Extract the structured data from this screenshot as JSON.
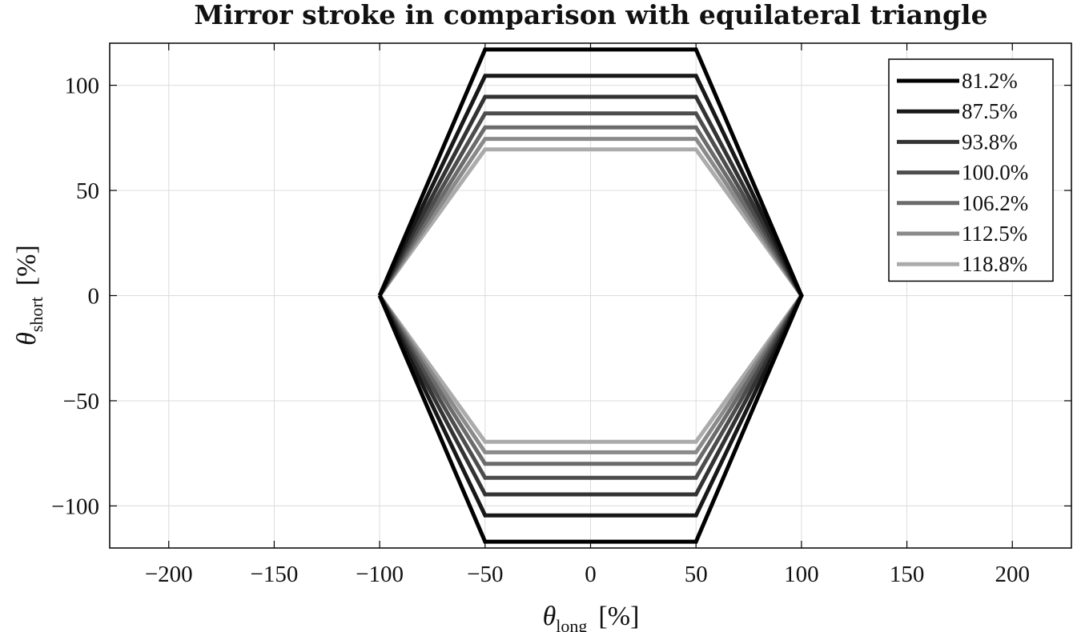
{
  "chart_data": {
    "type": "line",
    "title": "Mirror stroke in comparison with equilateral triangle",
    "xlabel": {
      "symbol": "θ",
      "subscript": "long",
      "unit": "[%]"
    },
    "ylabel": {
      "symbol": "θ",
      "subscript": "short",
      "unit": "[%]"
    },
    "xlim": [
      -228,
      228
    ],
    "ylim": [
      -120,
      120
    ],
    "xticks": [
      -200,
      -150,
      -100,
      -50,
      0,
      50,
      100,
      150,
      200
    ],
    "yticks": [
      -100,
      -50,
      0,
      50,
      100
    ],
    "xtick_labels": [
      "−200",
      "−150",
      "−100",
      "−50",
      "0",
      "50",
      "100",
      "150",
      "200"
    ],
    "ytick_labels": [
      "−100",
      "−50",
      "0",
      "50",
      "100"
    ],
    "grid": true,
    "legend_position": "top-right",
    "series": [
      {
        "name": "81.2%",
        "color": "#000000",
        "x": [
          -100,
          -50,
          50,
          100,
          50,
          -50,
          -100
        ],
        "y": [
          0,
          117,
          117,
          0,
          -117,
          -117,
          0
        ]
      },
      {
        "name": "87.5%",
        "color": "#181818",
        "x": [
          -100,
          -50,
          50,
          100,
          50,
          -50,
          -100
        ],
        "y": [
          0,
          104.5,
          104.5,
          0,
          -104.5,
          -104.5,
          0
        ]
      },
      {
        "name": "93.8%",
        "color": "#333333",
        "x": [
          -100,
          -50,
          50,
          100,
          50,
          -50,
          -100
        ],
        "y": [
          0,
          94.5,
          94.5,
          0,
          -94.5,
          -94.5,
          0
        ]
      },
      {
        "name": "100.0%",
        "color": "#4d4d4d",
        "x": [
          -100,
          -50,
          50,
          100,
          50,
          -50,
          -100
        ],
        "y": [
          0,
          86.6,
          86.6,
          0,
          -86.6,
          -86.6,
          0
        ]
      },
      {
        "name": "106.2%",
        "color": "#6b6b6b",
        "x": [
          -100,
          -50,
          50,
          100,
          50,
          -50,
          -100
        ],
        "y": [
          0,
          80,
          80,
          0,
          -80,
          -80,
          0
        ]
      },
      {
        "name": "112.5%",
        "color": "#8a8a8a",
        "x": [
          -100,
          -50,
          50,
          100,
          50,
          -50,
          -100
        ],
        "y": [
          0,
          74.5,
          74.5,
          0,
          -74.5,
          -74.5,
          0
        ]
      },
      {
        "name": "118.8%",
        "color": "#ababab",
        "x": [
          -100,
          -50,
          50,
          100,
          50,
          -50,
          -100
        ],
        "y": [
          0,
          69.5,
          69.5,
          0,
          -69.5,
          -69.5,
          0
        ]
      }
    ]
  }
}
